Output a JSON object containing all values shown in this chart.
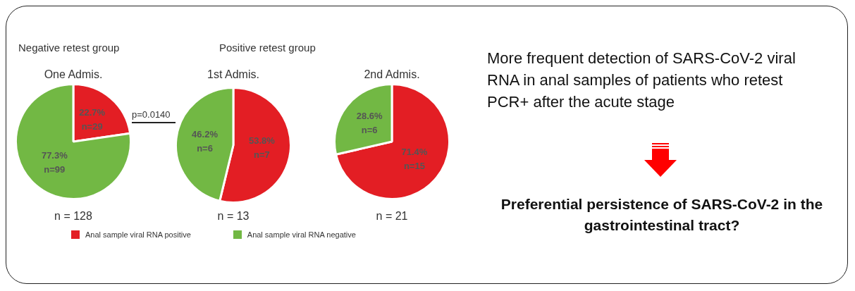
{
  "chart_data": [
    {
      "type": "pie",
      "title": "Negative retest group",
      "subtitle": "One Admis.",
      "xlabel": "n = 128",
      "categories": [
        "Anal sample viral RNA positive",
        "Anal sample viral RNA negative"
      ],
      "values": [
        22.7,
        77.3
      ],
      "value_labels": [
        "22.7%\nn=29",
        "77.3%\nn=99"
      ],
      "colors": [
        "#e31e24",
        "#72b844"
      ],
      "legend": "bottom",
      "annotations": [
        "p=0.0140"
      ]
    },
    {
      "type": "pie",
      "title": "Positive retest group",
      "subtitle": "1st Admis.",
      "xlabel": "n = 13",
      "categories": [
        null,
        null
      ],
      "values": [
        53.8,
        46.2
      ],
      "value_labels": [
        "53.8%\nn=7",
        "46.2%\nn=6"
      ],
      "colors": [
        "#e31e24",
        "#72b844"
      ]
    },
    {
      "type": "pie",
      "subtitle": "2nd Admis.",
      "xlabel": "n = 21",
      "categories": [
        null,
        null
      ],
      "values": [
        71.4,
        28.6
      ],
      "value_labels": [
        "71.4%\nn=15",
        "28.6%\nn=6"
      ],
      "colors": [
        "#e31e24",
        "#72b844"
      ]
    },
    {
      "type": "other",
      "annotations": [
        "More frequent detection of SARS-CoV-2 viral RNA in anal samples of patients who retest PCR+ after the acute stage",
        "Preferential persistence of SARS-CoV-2 in the gastrointestinal tract?"
      ]
    }
  ]
}
